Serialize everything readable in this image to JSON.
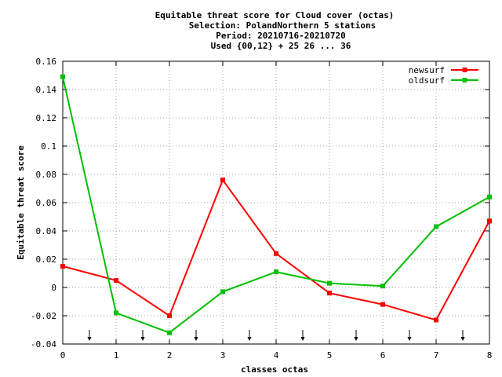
{
  "chart_data": {
    "type": "line",
    "title_lines": [
      "Equitable threat score  for Cloud cover (octas)",
      "Selection: PolandNorthern      5 stations",
      "Period: 20210716-20210720",
      "Used {00,12} + 25 26 ... 36"
    ],
    "xlabel": "classes octas",
    "ylabel": "Equitable threat score",
    "x_ticks": [
      "0",
      "1",
      "2",
      "3",
      "4",
      "5",
      "6",
      "7",
      "8"
    ],
    "y_ticks": [
      "-0.04",
      "-0.02",
      "0",
      "0.02",
      "0.04",
      "0.06",
      "0.08",
      "0.1",
      "0.12",
      "0.14",
      "0.16"
    ],
    "xlim": [
      0,
      8
    ],
    "ylim": [
      -0.04,
      0.16
    ],
    "grid": true,
    "legend_position": "top-right",
    "x": [
      0,
      1,
      2,
      3,
      4,
      5,
      6,
      7,
      8
    ],
    "series": [
      {
        "name": "newsurf",
        "color": "#ff0000",
        "values": [
          0.015,
          0.005,
          -0.02,
          0.076,
          0.024,
          -0.004,
          -0.012,
          -0.023,
          0.047
        ]
      },
      {
        "name": "oldsurf",
        "color": "#00c000",
        "values": [
          0.149,
          -0.018,
          -0.032,
          -0.003,
          0.011,
          0.003,
          0.001,
          0.043,
          0.064
        ]
      }
    ],
    "arrow_markers_x": [
      0.5,
      1.5,
      2.5,
      3.5,
      4.5,
      5.5,
      6.5,
      7.5
    ]
  }
}
